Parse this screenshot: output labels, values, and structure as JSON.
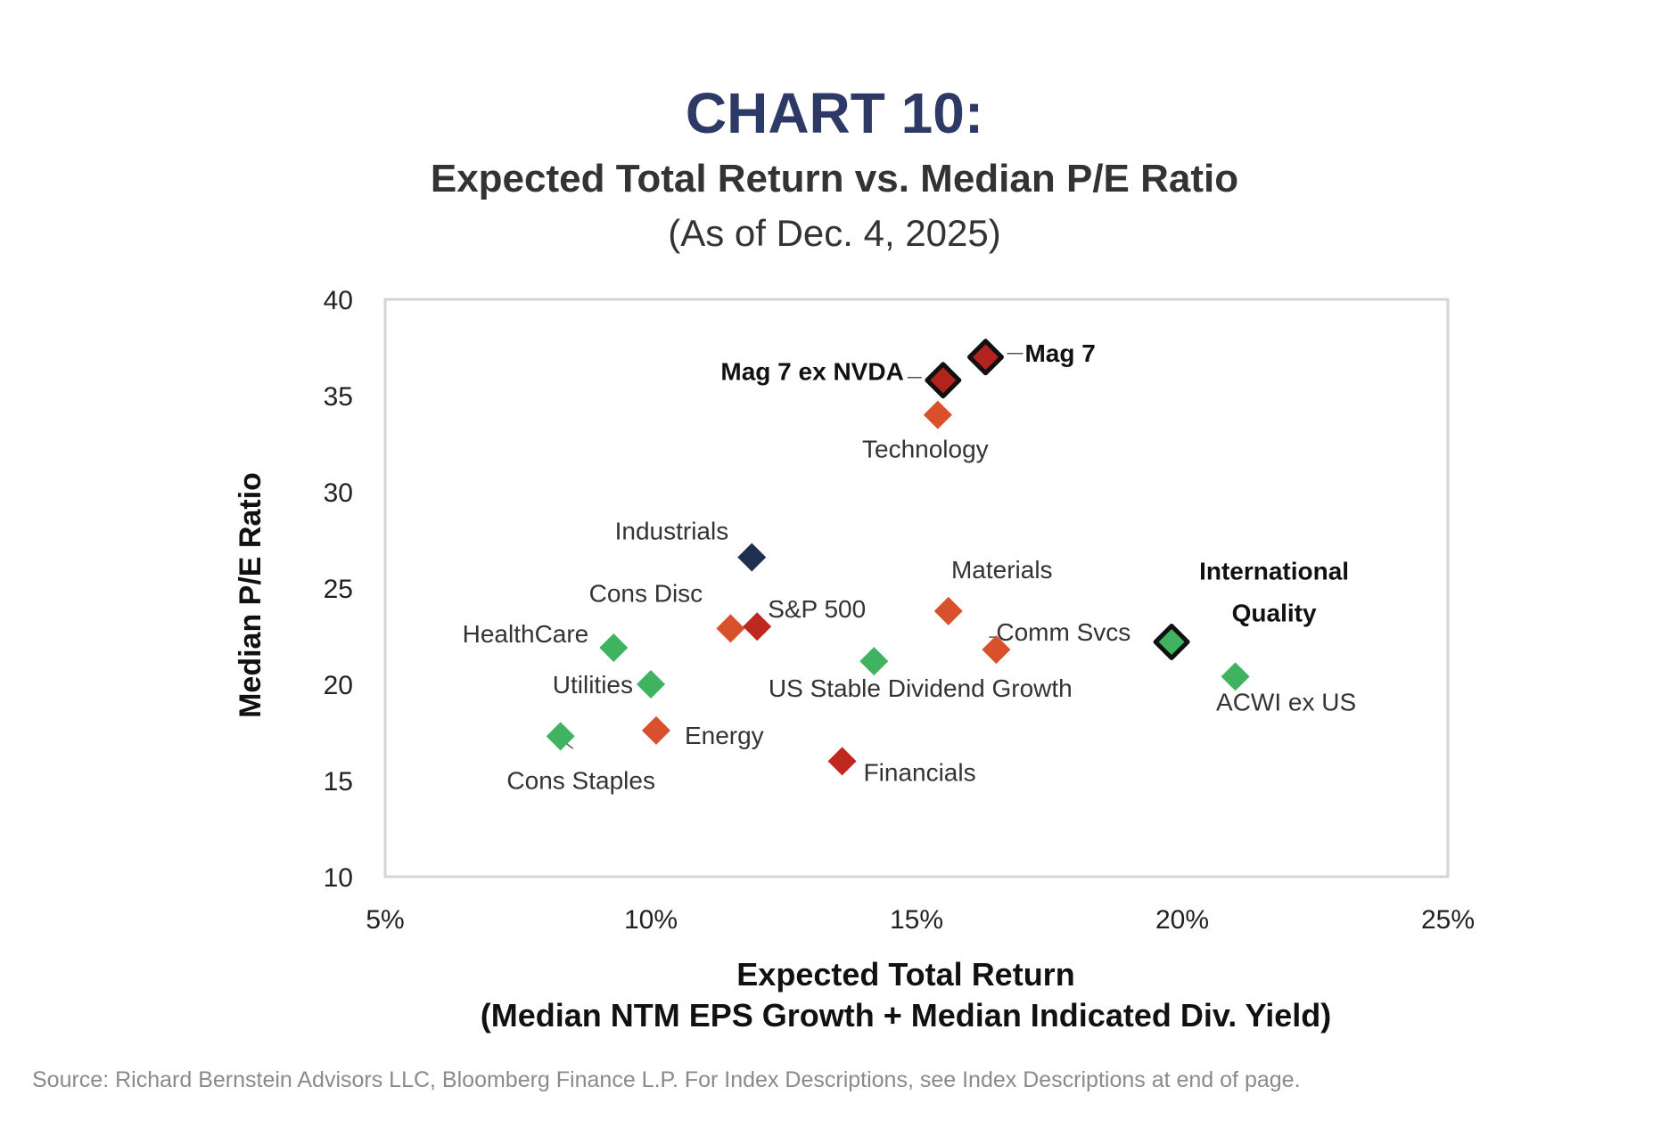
{
  "chart_data": {
    "type": "scatter",
    "title": "CHART 10:",
    "subtitle": "Expected Total Return vs. Median P/E Ratio",
    "date_note": "(As of Dec. 4, 2025)",
    "xlabel": "Expected Total Return",
    "xlabel_sub": "(Median NTM EPS Growth + Median Indicated Div. Yield)",
    "ylabel": "Median P/E Ratio",
    "xlim": [
      5,
      25
    ],
    "ylim": [
      10,
      40
    ],
    "x_ticks": [
      5,
      10,
      15,
      20,
      25
    ],
    "x_tick_labels": [
      "5%",
      "10%",
      "15%",
      "20%",
      "25%"
    ],
    "y_ticks": [
      10,
      15,
      20,
      25,
      30,
      35,
      40
    ],
    "y_tick_labels": [
      "10",
      "15",
      "20",
      "25",
      "30",
      "35",
      "40"
    ],
    "grid": false,
    "colors": {
      "orange": "#d9512c",
      "red": "#c0281f",
      "green": "#3fb35f",
      "navy": "#1f2f4f",
      "outline": "#111111",
      "title": "#2e3a66"
    },
    "points": [
      {
        "label": "Mag 7",
        "x": 16.3,
        "y": 37.0,
        "color": "#b2231d",
        "outline": true,
        "bold": true
      },
      {
        "label": "Mag 7 ex NVDA",
        "x": 15.5,
        "y": 35.8,
        "color": "#b2231d",
        "outline": true,
        "bold": true
      },
      {
        "label": "Technology",
        "x": 15.4,
        "y": 34.0,
        "color": "#d9512c"
      },
      {
        "label": "Industrials",
        "x": 11.9,
        "y": 26.6,
        "color": "#1f2f4f"
      },
      {
        "label": "Materials",
        "x": 15.6,
        "y": 23.8,
        "color": "#d9512c"
      },
      {
        "label": "Cons Disc",
        "x": 11.5,
        "y": 22.9,
        "color": "#d9512c"
      },
      {
        "label": "S&P 500",
        "x": 12.0,
        "y": 23.0,
        "color": "#c0281f"
      },
      {
        "label": "Comm Svcs",
        "x": 16.5,
        "y": 21.8,
        "color": "#d9512c"
      },
      {
        "label": "International Quality",
        "x": 19.8,
        "y": 22.2,
        "color": "#3fb35f",
        "outline": true,
        "bold": true
      },
      {
        "label": "HealthCare",
        "x": 9.3,
        "y": 21.9,
        "color": "#3fb35f"
      },
      {
        "label": "US Stable Dividend Growth",
        "x": 14.2,
        "y": 21.2,
        "color": "#3fb35f"
      },
      {
        "label": "ACWI ex US",
        "x": 21.0,
        "y": 20.4,
        "color": "#3fb35f"
      },
      {
        "label": "Utilities",
        "x": 10.0,
        "y": 20.0,
        "color": "#3fb35f"
      },
      {
        "label": "Energy",
        "x": 10.1,
        "y": 17.6,
        "color": "#d9512c"
      },
      {
        "label": "Cons Staples",
        "x": 8.3,
        "y": 17.3,
        "color": "#3fb35f"
      },
      {
        "label": "Financials",
        "x": 13.6,
        "y": 16.0,
        "color": "#c0281f"
      }
    ]
  },
  "source_note": "Source: Richard Bernstein Advisors LLC, Bloomberg Finance L.P. For Index Descriptions, see Index Descriptions at end of page."
}
